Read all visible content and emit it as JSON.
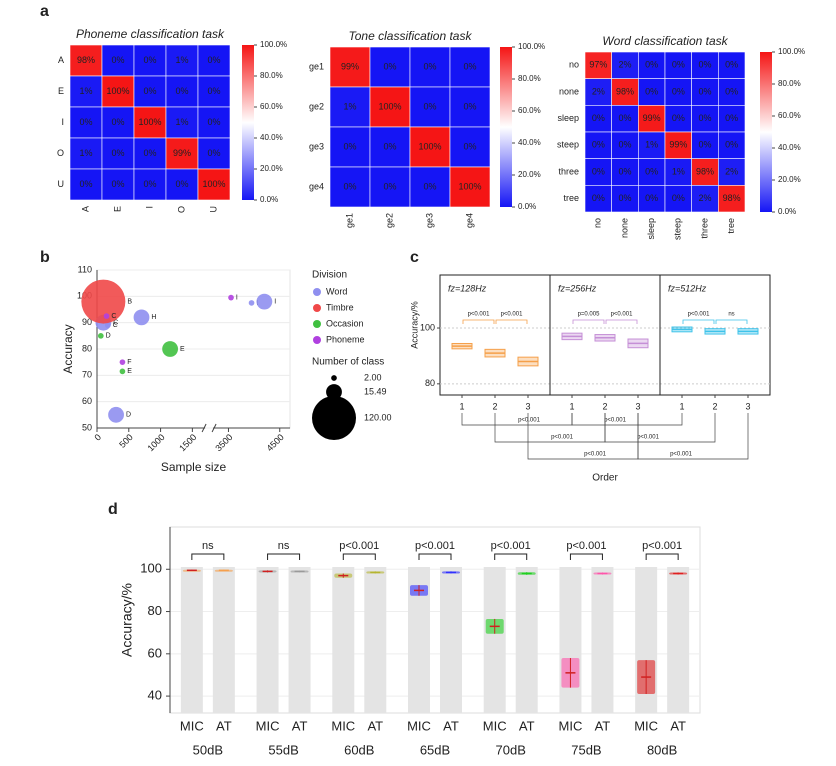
{
  "panel_labels": [
    "a",
    "b",
    "c",
    "d"
  ],
  "chart_data": [
    {
      "type": "heatmap",
      "title": "Phoneme classification task",
      "x_categories": [
        "A",
        "E",
        "I",
        "O",
        "U"
      ],
      "y_categories": [
        "A",
        "E",
        "I",
        "O",
        "U"
      ],
      "values": [
        [
          98,
          0,
          0,
          1,
          0
        ],
        [
          1,
          100,
          0,
          0,
          0
        ],
        [
          0,
          0,
          100,
          1,
          0
        ],
        [
          1,
          0,
          0,
          99,
          0
        ],
        [
          0,
          0,
          0,
          0,
          100
        ]
      ],
      "value_labels": [
        [
          "98%",
          "0%",
          "0%",
          "1%",
          "0%"
        ],
        [
          "1%",
          "100%",
          "0%",
          "0%",
          "0%"
        ],
        [
          "0%",
          "0%",
          "100%",
          "1%",
          "0%"
        ],
        [
          "1%",
          "0%",
          "0%",
          "99%",
          "0%"
        ],
        [
          "0%",
          "0%",
          "0%",
          "0%",
          "100%"
        ]
      ],
      "colorbar_ticks": [
        {
          "value": 0,
          "label": "0.0%"
        },
        {
          "value": 20,
          "label": "20.0%"
        },
        {
          "value": 40,
          "label": "40.0%"
        },
        {
          "value": 60,
          "label": "60.0%"
        },
        {
          "value": 80,
          "label": "80.0%"
        },
        {
          "value": 100,
          "label": "100.0%"
        }
      ],
      "colors": [
        "#1515f5",
        "#ffffff",
        "#f51515"
      ]
    },
    {
      "type": "heatmap",
      "title": "Tone classification task",
      "x_categories": [
        "ge1",
        "ge2",
        "ge3",
        "ge4"
      ],
      "y_categories": [
        "ge1",
        "ge2",
        "ge3",
        "ge4"
      ],
      "values": [
        [
          99,
          0,
          0,
          0
        ],
        [
          1,
          100,
          0,
          0
        ],
        [
          0,
          0,
          100,
          0
        ],
        [
          0,
          0,
          0,
          100
        ]
      ],
      "value_labels": [
        [
          "99%",
          "0%",
          "0%",
          "0%"
        ],
        [
          "1%",
          "100%",
          "0%",
          "0%"
        ],
        [
          "0%",
          "0%",
          "100%",
          "0%"
        ],
        [
          "0%",
          "0%",
          "0%",
          "100%"
        ]
      ],
      "colorbar_ticks": [
        {
          "value": 0,
          "label": "0.0%"
        },
        {
          "value": 20,
          "label": "20.0%"
        },
        {
          "value": 40,
          "label": "40.0%"
        },
        {
          "value": 60,
          "label": "60.0%"
        },
        {
          "value": 80,
          "label": "80.0%"
        },
        {
          "value": 100,
          "label": "100.0%"
        }
      ],
      "colors": [
        "#1515f5",
        "#ffffff",
        "#f51515"
      ]
    },
    {
      "type": "heatmap",
      "title": "Word classification task",
      "x_categories": [
        "no",
        "none",
        "sleep",
        "steep",
        "three",
        "tree"
      ],
      "y_categories": [
        "no",
        "none",
        "sleep",
        "steep",
        "three",
        "tree"
      ],
      "values": [
        [
          97,
          2,
          0,
          0,
          0,
          0
        ],
        [
          2,
          98,
          0,
          0,
          0,
          0
        ],
        [
          0,
          0,
          99,
          0,
          0,
          0
        ],
        [
          0,
          0,
          1,
          99,
          0,
          0
        ],
        [
          0,
          0,
          0,
          1,
          98,
          2
        ],
        [
          0,
          0,
          0,
          0,
          2,
          98
        ]
      ],
      "value_labels": [
        [
          "97%",
          "2%",
          "0%",
          "0%",
          "0%",
          "0%"
        ],
        [
          "2%",
          "98%",
          "0%",
          "0%",
          "0%",
          "0%"
        ],
        [
          "0%",
          "0%",
          "99%",
          "0%",
          "0%",
          "0%"
        ],
        [
          "0%",
          "0%",
          "1%",
          "99%",
          "0%",
          "0%"
        ],
        [
          "0%",
          "0%",
          "0%",
          "1%",
          "98%",
          "2%"
        ],
        [
          "0%",
          "0%",
          "0%",
          "0%",
          "2%",
          "98%"
        ]
      ],
      "colorbar_ticks": [
        {
          "value": 0,
          "label": "0.0%"
        },
        {
          "value": 20,
          "label": "20.0%"
        },
        {
          "value": 40,
          "label": "40.0%"
        },
        {
          "value": 60,
          "label": "60.0%"
        },
        {
          "value": 80,
          "label": "80.0%"
        },
        {
          "value": 100,
          "label": "100.0%"
        }
      ],
      "colors": [
        "#1515f5",
        "#ffffff",
        "#f51515"
      ]
    },
    {
      "type": "bubble",
      "xlabel": "Sample size",
      "ylabel": "Accuracy",
      "xlim": [
        0,
        4700
      ],
      "xbreak": [
        1700,
        3200
      ],
      "xticks": [
        0,
        500,
        1000,
        1500,
        3500,
        4500
      ],
      "ylim": [
        50,
        110
      ],
      "yticks": [
        50,
        60,
        70,
        80,
        90,
        100,
        110
      ],
      "legend_title": "Division",
      "size_title": "Number of class",
      "size_legend": [
        {
          "value": 2,
          "label": "2.00"
        },
        {
          "value": 15.49,
          "label": "15.49"
        },
        {
          "value": 120,
          "label": "120.00"
        }
      ],
      "series": [
        {
          "name": "Word",
          "color": "#8f8fef",
          "x": [
            100,
            170,
            700,
            300,
            3950,
            4200
          ],
          "y": [
            90,
            89,
            92,
            55,
            97.5,
            98
          ],
          "size": [
            15.49,
            2,
            15.49,
            15.49,
            2,
            15.49
          ],
          "labels": [
            "C",
            "C",
            "H",
            "D",
            "I",
            "I"
          ]
        },
        {
          "name": "Timbre",
          "color": "#f04848",
          "x": [
            100
          ],
          "y": [
            98
          ],
          "size": [
            120
          ],
          "labels": [
            "B"
          ]
        },
        {
          "name": "Occasion",
          "color": "#40c040",
          "x": [
            60,
            1150,
            400
          ],
          "y": [
            85,
            80,
            71.5
          ],
          "size": [
            2,
            15.49,
            2
          ],
          "labels": [
            "D",
            "E",
            "E"
          ]
        },
        {
          "name": "Phoneme",
          "color": "#b040e0",
          "x": [
            150,
            400,
            3550
          ],
          "y": [
            92.5,
            75,
            99.5
          ],
          "size": [
            2,
            2,
            2
          ],
          "labels": [
            "C",
            "F",
            "I"
          ]
        }
      ]
    },
    {
      "type": "strip",
      "xlabel": "Order",
      "ylabel": "Accuracy/%",
      "ylim": [
        76,
        119
      ],
      "yticks": [
        80,
        100
      ],
      "groups": [
        {
          "title": "fz=128Hz",
          "title_color": "#f08a20",
          "color": "#f5a04a",
          "categories": [
            "1",
            "2",
            "3"
          ],
          "values": [
            93.5,
            91,
            88
          ],
          "spread": [
            0.6,
            1,
            1.2
          ],
          "p_labels": [
            "p<0.001",
            "p<0.001"
          ]
        },
        {
          "title": "fz=256Hz",
          "title_color": "#c070d0",
          "color": "#c58fd6",
          "categories": [
            "1",
            "2",
            "3"
          ],
          "values": [
            97,
            96.5,
            94.5
          ],
          "spread": [
            0.8,
            0.8,
            1.2
          ],
          "p_labels": [
            "p=0.005",
            "p<0.001"
          ]
        },
        {
          "title": "fz=512Hz",
          "title_color": "#2828c0",
          "color": "#3fc3ea",
          "categories": [
            "1",
            "2",
            "3"
          ],
          "values": [
            99.5,
            98.8,
            98.8
          ],
          "spread": [
            0.5,
            0.6,
            0.6
          ],
          "p_labels": [
            "p<0.001",
            "ns"
          ]
        }
      ],
      "comparisons": [
        "p<0.001",
        "p<0.001",
        "p<0.001",
        "p<0.001",
        "p<0.001",
        "p<0.001"
      ]
    },
    {
      "type": "bar",
      "ylabel": "Accuracy/%",
      "ylim": [
        32,
        120
      ],
      "yticks": [
        40,
        60,
        80,
        100
      ],
      "categories": [
        "50dB",
        "55dB",
        "60dB",
        "65dB",
        "70dB",
        "75dB",
        "80dB"
      ],
      "colors": [
        "#f6a04d",
        "#9a9a9a",
        "#b5b530",
        "#3030ff",
        "#20d020",
        "#ff55aa",
        "#e02020"
      ],
      "series": [
        {
          "name": "MIC",
          "values": [
            99.5,
            99,
            97,
            90,
            73,
            51,
            49
          ],
          "errors": [
            0.3,
            0.5,
            1,
            2.5,
            3.5,
            7,
            8
          ]
        },
        {
          "name": "AT",
          "values": [
            99.5,
            99,
            98.5,
            98.5,
            98,
            98,
            98
          ],
          "errors": [
            0.3,
            0.4,
            0.5,
            0.5,
            0.6,
            0.5,
            0.5
          ]
        }
      ],
      "p_labels": [
        "ns",
        "ns",
        "p<0.001",
        "p<0.001",
        "p<0.001",
        "p<0.001",
        "p<0.001"
      ]
    }
  ]
}
